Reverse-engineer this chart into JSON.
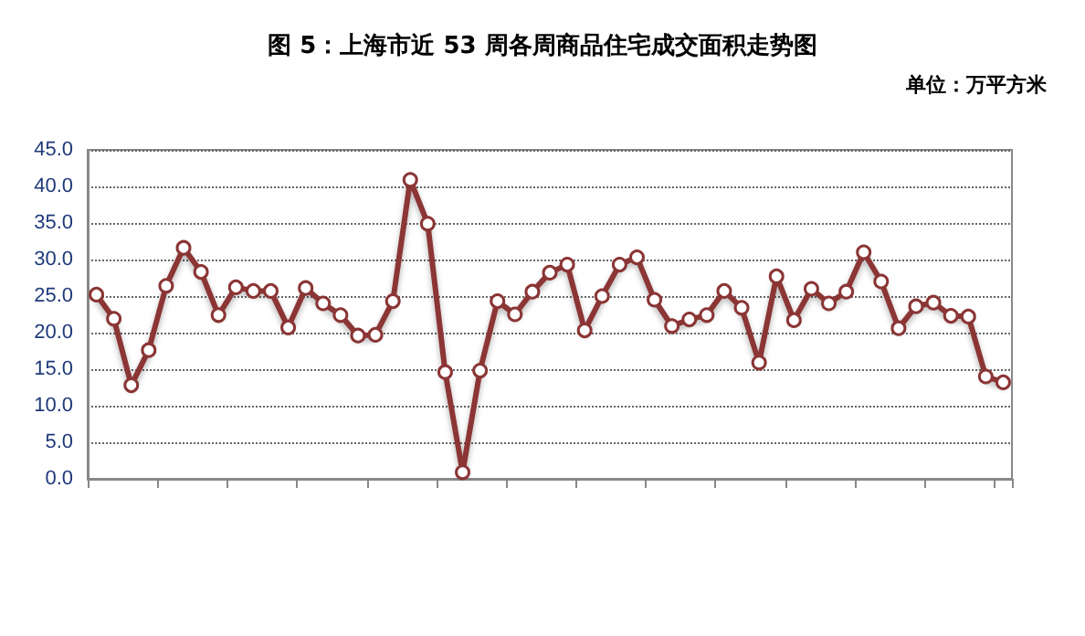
{
  "chart_data": {
    "type": "line",
    "title": "图 5：上海市近 53 周各周商品住宅成交面积走势图",
    "annotations": [
      "单位：万平方米"
    ],
    "categories": [
      null,
      null,
      null,
      null,
      null,
      null,
      null,
      null,
      null,
      null,
      null,
      null,
      null,
      null,
      null,
      null,
      null,
      null,
      null,
      null,
      null,
      null,
      null,
      null,
      null,
      null,
      null,
      null,
      null,
      null,
      null,
      null,
      null,
      null,
      null,
      null,
      null,
      null,
      null,
      null,
      null,
      null,
      null,
      null,
      null,
      null,
      null,
      null,
      null,
      null,
      null,
      null,
      null
    ],
    "series": [
      {
        "color": "#8b3535",
        "values": [
          25.2,
          21.9,
          12.8,
          17.6,
          26.4,
          31.6,
          28.3,
          22.4,
          26.2,
          25.7,
          25.7,
          20.7,
          26.1,
          24.0,
          22.4,
          19.6,
          19.7,
          24.3,
          40.9,
          34.9,
          14.6,
          0.9,
          14.8,
          24.3,
          22.5,
          25.6,
          28.2,
          29.3,
          20.3,
          25.0,
          29.3,
          30.3,
          24.5,
          20.9,
          21.8,
          22.4,
          25.7,
          23.4,
          15.9,
          27.7,
          21.7,
          26.0,
          24.0,
          25.6,
          31.0,
          27.0,
          20.6,
          23.6,
          24.1,
          22.3,
          22.2,
          14.0,
          13.2
        ]
      }
    ],
    "ylim": [
      0,
      45
    ],
    "yticks": [
      {
        "value": 0,
        "label": "0.0"
      },
      {
        "value": 5,
        "label": "5.0"
      },
      {
        "value": 10,
        "label": "10.0"
      },
      {
        "value": 15,
        "label": "15.0"
      },
      {
        "value": 20,
        "label": "20.0"
      },
      {
        "value": 25,
        "label": "25.0"
      },
      {
        "value": 30,
        "label": "30.0"
      },
      {
        "value": 35,
        "label": "35.0"
      },
      {
        "value": 40,
        "label": "40.0"
      },
      {
        "value": 45,
        "label": "45.0"
      }
    ],
    "grid": "y",
    "marker": "circle"
  }
}
